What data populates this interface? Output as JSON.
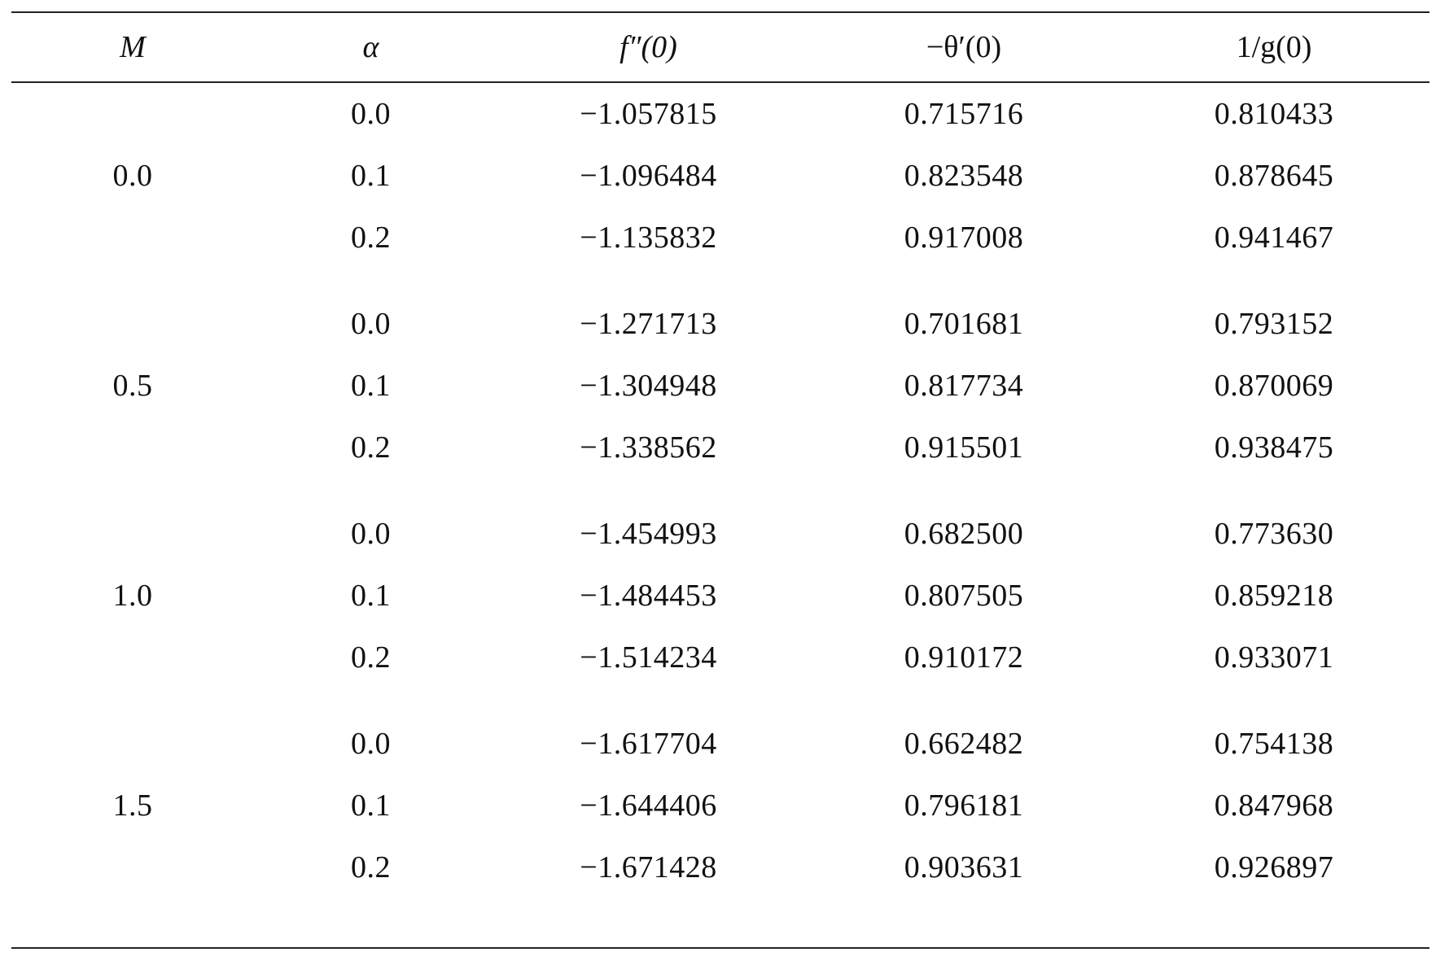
{
  "table": {
    "headers": {
      "m": "M",
      "alpha": "α",
      "f": "f″(0)",
      "theta": "−θ′(0)",
      "g": "1/g(0)"
    },
    "groups": [
      {
        "m": "0.0",
        "rows": [
          {
            "alpha": "0.0",
            "f": "−1.057815",
            "theta": "0.715716",
            "g": "0.810433"
          },
          {
            "alpha": "0.1",
            "f": "−1.096484",
            "theta": "0.823548",
            "g": "0.878645"
          },
          {
            "alpha": "0.2",
            "f": "−1.135832",
            "theta": "0.917008",
            "g": "0.941467"
          }
        ]
      },
      {
        "m": "0.5",
        "rows": [
          {
            "alpha": "0.0",
            "f": "−1.271713",
            "theta": "0.701681",
            "g": "0.793152"
          },
          {
            "alpha": "0.1",
            "f": "−1.304948",
            "theta": "0.817734",
            "g": "0.870069"
          },
          {
            "alpha": "0.2",
            "f": "−1.338562",
            "theta": "0.915501",
            "g": "0.938475"
          }
        ]
      },
      {
        "m": "1.0",
        "rows": [
          {
            "alpha": "0.0",
            "f": "−1.454993",
            "theta": "0.682500",
            "g": "0.773630"
          },
          {
            "alpha": "0.1",
            "f": "−1.484453",
            "theta": "0.807505",
            "g": "0.859218"
          },
          {
            "alpha": "0.2",
            "f": "−1.514234",
            "theta": "0.910172",
            "g": "0.933071"
          }
        ]
      },
      {
        "m": "1.5",
        "rows": [
          {
            "alpha": "0.0",
            "f": "−1.617704",
            "theta": "0.662482",
            "g": "0.754138"
          },
          {
            "alpha": "0.1",
            "f": "−1.644406",
            "theta": "0.796181",
            "g": "0.847968"
          },
          {
            "alpha": "0.2",
            "f": "−1.671428",
            "theta": "0.903631",
            "g": "0.926897"
          }
        ]
      }
    ]
  }
}
